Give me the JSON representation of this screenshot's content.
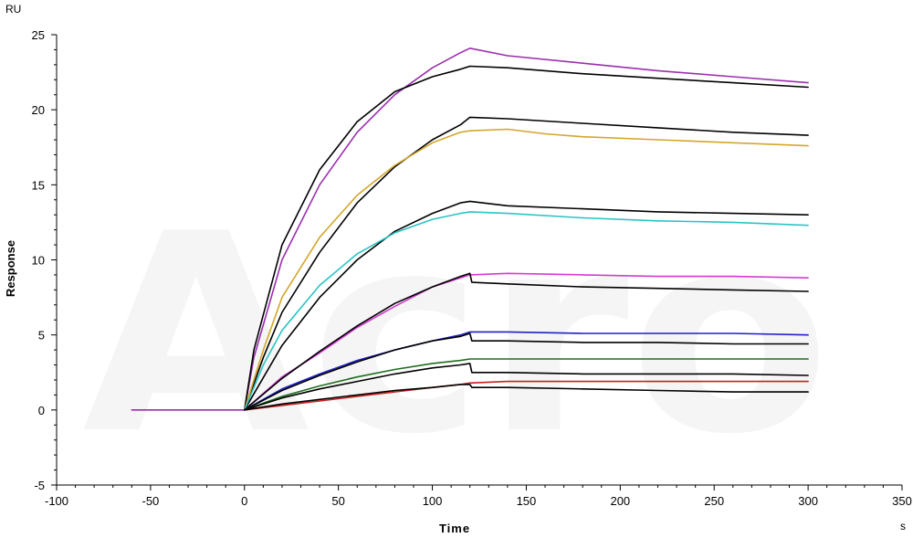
{
  "chart_data": {
    "type": "line",
    "xlabel": "Time",
    "ylabel": "Response",
    "x_unit": "s",
    "y_unit": "RU",
    "xlim": [
      -100,
      350
    ],
    "ylim": [
      -5,
      25
    ],
    "x_ticks": [
      -100,
      -50,
      0,
      50,
      100,
      150,
      200,
      250,
      300,
      350
    ],
    "y_ticks": [
      -5,
      0,
      5,
      10,
      15,
      20,
      25
    ],
    "grid": false,
    "watermark": "Acro",
    "series": [
      {
        "color": "#9b2fae",
        "x": [
          -60,
          0,
          5,
          20,
          40,
          60,
          80,
          100,
          115,
          120,
          140,
          180,
          220,
          260,
          300
        ],
        "y": [
          0,
          0,
          3.5,
          10,
          15,
          18.5,
          21,
          22.8,
          23.8,
          24.1,
          23.6,
          23.1,
          22.6,
          22.2,
          21.8
        ]
      },
      {
        "color": "#000000",
        "x": [
          0,
          5,
          20,
          40,
          60,
          80,
          100,
          115,
          120,
          140,
          180,
          220,
          260,
          300
        ],
        "y": [
          0,
          4,
          11,
          16,
          19.2,
          21.2,
          22.2,
          22.7,
          22.9,
          22.8,
          22.4,
          22.1,
          21.8,
          21.5
        ]
      },
      {
        "color": "#000000",
        "x": [
          0,
          10,
          20,
          40,
          60,
          80,
          100,
          115,
          120,
          140,
          180,
          220,
          260,
          300
        ],
        "y": [
          0,
          3.5,
          6.5,
          10.5,
          13.8,
          16.2,
          18,
          19,
          19.5,
          19.4,
          19.1,
          18.8,
          18.5,
          18.3
        ]
      },
      {
        "color": "#d4a62a",
        "x": [
          0,
          10,
          20,
          40,
          60,
          80,
          100,
          115,
          120,
          140,
          160,
          180,
          220,
          260,
          300
        ],
        "y": [
          0,
          4,
          7.5,
          11.5,
          14.3,
          16.3,
          17.8,
          18.5,
          18.6,
          18.7,
          18.4,
          18.2,
          18,
          17.8,
          17.6
        ]
      },
      {
        "color": "#000000",
        "x": [
          0,
          20,
          40,
          60,
          80,
          100,
          115,
          120,
          140,
          180,
          220,
          260,
          300
        ],
        "y": [
          0,
          4.3,
          7.5,
          10,
          11.9,
          13.1,
          13.8,
          13.9,
          13.6,
          13.4,
          13.2,
          13.1,
          13
        ]
      },
      {
        "color": "#2bc4c4",
        "x": [
          0,
          10,
          20,
          40,
          60,
          80,
          100,
          115,
          120,
          140,
          180,
          220,
          260,
          300
        ],
        "y": [
          0,
          3,
          5.3,
          8.3,
          10.4,
          11.8,
          12.7,
          13.1,
          13.2,
          13.1,
          12.8,
          12.6,
          12.5,
          12.3
        ]
      },
      {
        "color": "#d43bd4",
        "x": [
          0,
          20,
          40,
          60,
          80,
          100,
          115,
          120,
          140,
          180,
          220,
          260,
          300
        ],
        "y": [
          0,
          2.2,
          3.8,
          5.5,
          6.9,
          8.2,
          8.8,
          9,
          9.1,
          9,
          8.9,
          8.9,
          8.8
        ]
      },
      {
        "color": "#000000",
        "x": [
          0,
          20,
          40,
          60,
          80,
          100,
          115,
          120,
          121,
          140,
          180,
          220,
          260,
          300
        ],
        "y": [
          0,
          2.1,
          3.9,
          5.6,
          7.1,
          8.2,
          8.9,
          9.1,
          8.5,
          8.4,
          8.2,
          8.1,
          8,
          7.9
        ]
      },
      {
        "color": "#1f1fc8",
        "x": [
          0,
          20,
          40,
          60,
          80,
          100,
          115,
          120,
          140,
          180,
          220,
          260,
          300
        ],
        "y": [
          0,
          1.4,
          2.4,
          3.3,
          4,
          4.6,
          5,
          5.2,
          5.2,
          5.1,
          5.1,
          5.1,
          5
        ]
      },
      {
        "color": "#000000",
        "x": [
          0,
          20,
          40,
          60,
          80,
          100,
          115,
          120,
          121,
          140,
          180,
          220,
          260,
          300
        ],
        "y": [
          0,
          1.3,
          2.3,
          3.2,
          4,
          4.6,
          4.9,
          5.1,
          4.6,
          4.6,
          4.5,
          4.5,
          4.4,
          4.4
        ]
      },
      {
        "color": "#1e6e1e",
        "x": [
          0,
          20,
          40,
          60,
          80,
          100,
          115,
          120,
          140,
          180,
          220,
          260,
          300
        ],
        "y": [
          0,
          0.9,
          1.6,
          2.2,
          2.7,
          3.1,
          3.3,
          3.4,
          3.4,
          3.4,
          3.4,
          3.4,
          3.4
        ]
      },
      {
        "color": "#000000",
        "x": [
          0,
          20,
          40,
          60,
          80,
          100,
          115,
          120,
          121,
          140,
          180,
          220,
          260,
          300
        ],
        "y": [
          0,
          0.8,
          1.4,
          1.9,
          2.4,
          2.8,
          3,
          3.1,
          2.5,
          2.5,
          2.4,
          2.4,
          2.4,
          2.3
        ]
      },
      {
        "color": "#cc1f1f",
        "x": [
          0,
          20,
          40,
          60,
          80,
          100,
          115,
          120,
          140,
          180,
          220,
          260,
          300
        ],
        "y": [
          0,
          0.3,
          0.6,
          0.9,
          1.2,
          1.5,
          1.7,
          1.8,
          1.9,
          1.9,
          1.9,
          1.9,
          1.9
        ]
      },
      {
        "color": "#000000",
        "x": [
          0,
          20,
          40,
          60,
          80,
          100,
          115,
          120,
          121,
          140,
          180,
          220,
          260,
          300
        ],
        "y": [
          0,
          0.4,
          0.7,
          1,
          1.3,
          1.5,
          1.7,
          1.7,
          1.5,
          1.5,
          1.4,
          1.3,
          1.2,
          1.2
        ]
      }
    ]
  }
}
